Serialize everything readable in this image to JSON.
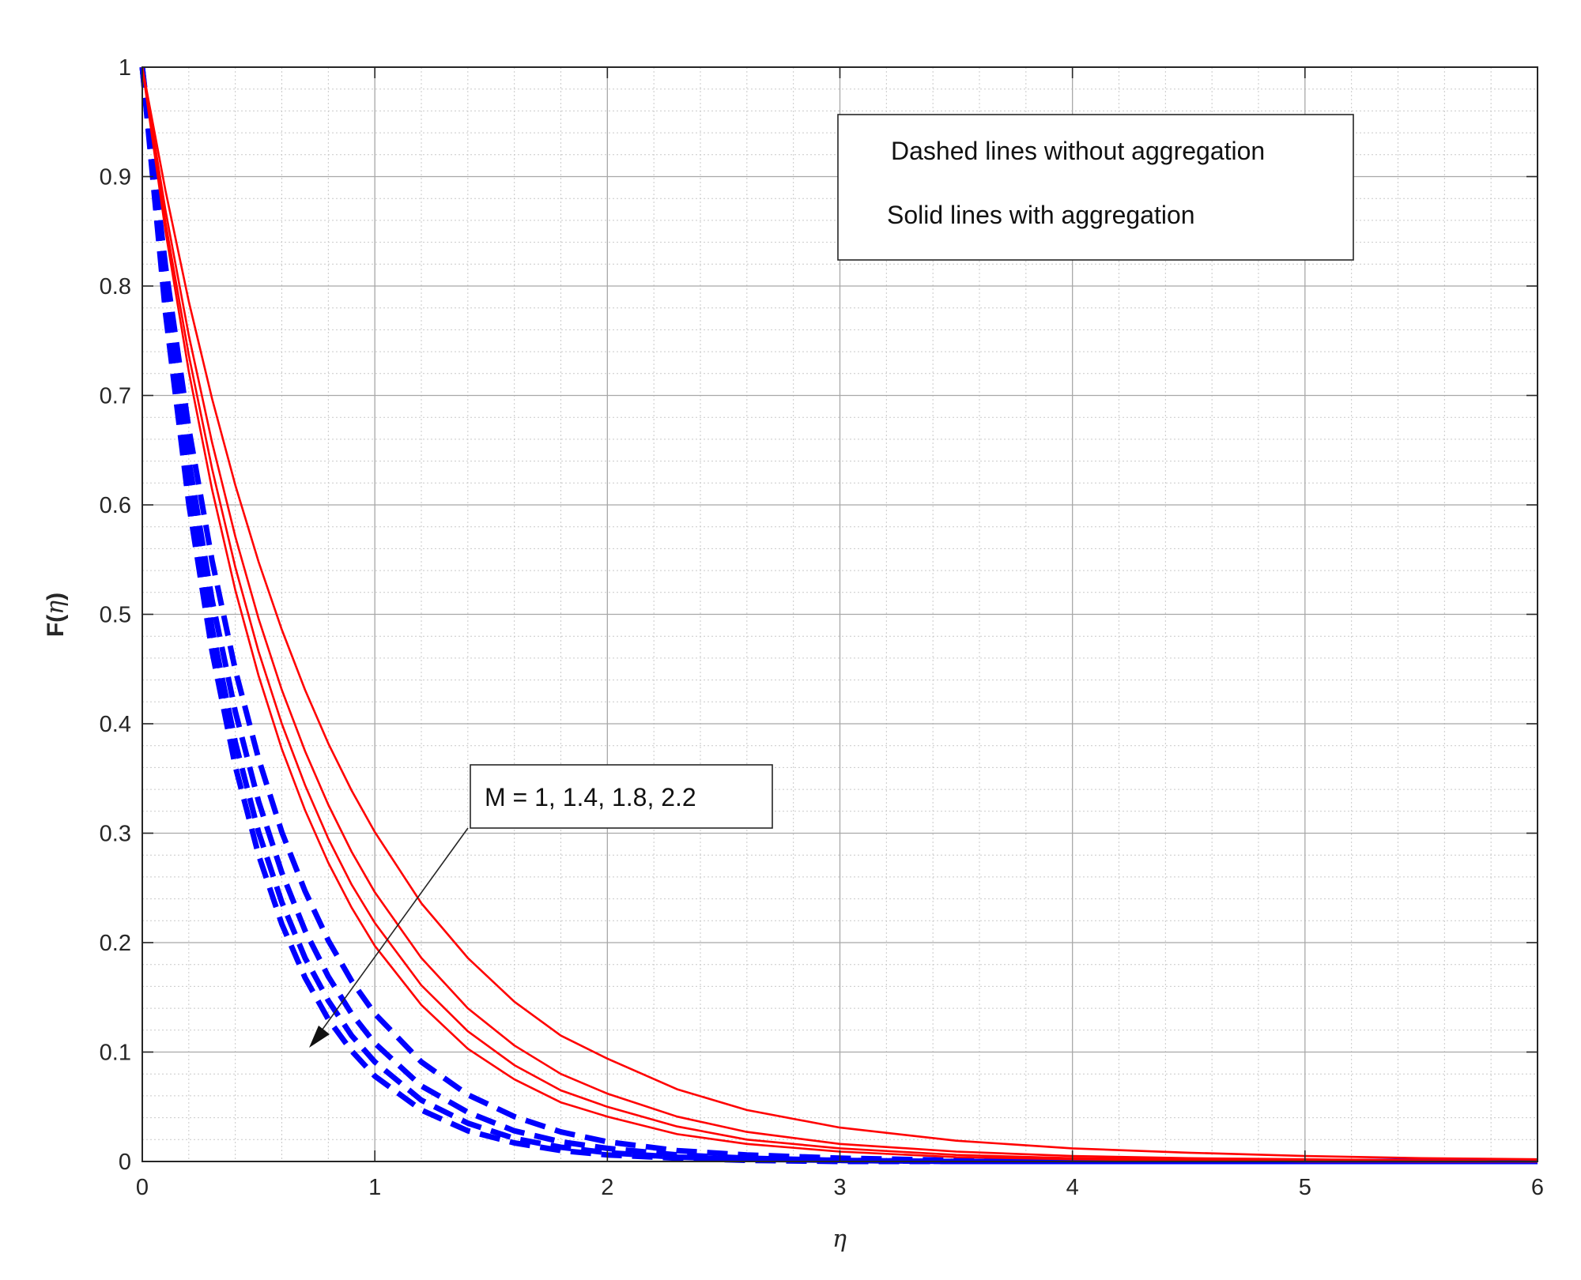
{
  "chart_data": {
    "type": "line",
    "title": "",
    "xlabel": "η",
    "ylabel_prefix": "F(",
    "ylabel_var": "η",
    "ylabel_suffix": ")",
    "xlim": [
      0,
      6
    ],
    "ylim": [
      0,
      1
    ],
    "xticks": [
      0,
      1,
      2,
      3,
      4,
      5,
      6
    ],
    "xtick_labels": [
      "0",
      "1",
      "2",
      "3",
      "4",
      "5",
      "6"
    ],
    "yticks": [
      0,
      0.1,
      0.2,
      0.3,
      0.4,
      0.5,
      0.6,
      0.7,
      0.8,
      0.9,
      1
    ],
    "ytick_labels": [
      "0",
      "0.1",
      "0.2",
      "0.3",
      "0.4",
      "0.5",
      "0.6",
      "0.7",
      "0.8",
      "0.9",
      "1"
    ],
    "grid": true,
    "minor_grid": true,
    "colors": {
      "without_aggregation": "#0000ff",
      "with_aggregation": "#ff0000"
    },
    "x": [
      0,
      0.1,
      0.2,
      0.3,
      0.4,
      0.5,
      0.6,
      0.7,
      0.8,
      0.9,
      1.0,
      1.2,
      1.4,
      1.6,
      1.8,
      2.0,
      2.3,
      2.6,
      3.0,
      3.5,
      4.0,
      4.5,
      5.0,
      5.5,
      6.0
    ],
    "series": [
      {
        "style": "dashed",
        "group": "without_aggregation",
        "M": 1,
        "values": [
          1.0,
          0.818,
          0.67,
          0.549,
          0.449,
          0.368,
          0.301,
          0.247,
          0.202,
          0.165,
          0.135,
          0.091,
          0.061,
          0.041,
          0.027,
          0.018,
          0.01,
          0.006,
          0.003,
          0.001,
          0.0,
          0.0,
          0.0,
          0.0,
          0.0
        ]
      },
      {
        "style": "dashed",
        "group": "without_aggregation",
        "M": 1.4,
        "values": [
          1.0,
          0.801,
          0.641,
          0.513,
          0.411,
          0.329,
          0.264,
          0.211,
          0.169,
          0.135,
          0.108,
          0.069,
          0.045,
          0.028,
          0.018,
          0.012,
          0.006,
          0.003,
          0.001,
          0.0,
          0.0,
          0.0,
          0.0,
          0.0,
          0.0
        ]
      },
      {
        "style": "dashed",
        "group": "without_aggregation",
        "M": 1.8,
        "values": [
          1.0,
          0.787,
          0.619,
          0.487,
          0.383,
          0.301,
          0.237,
          0.186,
          0.147,
          0.115,
          0.091,
          0.056,
          0.035,
          0.021,
          0.013,
          0.008,
          0.004,
          0.002,
          0.001,
          0.0,
          0.0,
          0.0,
          0.0,
          0.0,
          0.0
        ]
      },
      {
        "style": "dashed",
        "group": "without_aggregation",
        "M": 2.2,
        "values": [
          1.0,
          0.775,
          0.601,
          0.466,
          0.361,
          0.28,
          0.217,
          0.168,
          0.13,
          0.101,
          0.078,
          0.047,
          0.028,
          0.017,
          0.01,
          0.006,
          0.003,
          0.001,
          0.0,
          0.0,
          0.0,
          0.0,
          0.0,
          0.0,
          0.0
        ]
      },
      {
        "style": "solid",
        "group": "with_aggregation",
        "M": 1,
        "values": [
          1.0,
          0.887,
          0.786,
          0.697,
          0.618,
          0.548,
          0.486,
          0.431,
          0.382,
          0.339,
          0.301,
          0.236,
          0.186,
          0.146,
          0.115,
          0.094,
          0.066,
          0.047,
          0.031,
          0.019,
          0.012,
          0.008,
          0.005,
          0.003,
          0.002
        ]
      },
      {
        "style": "solid",
        "group": "with_aggregation",
        "M": 1.4,
        "values": [
          1.0,
          0.869,
          0.755,
          0.657,
          0.571,
          0.496,
          0.431,
          0.375,
          0.326,
          0.283,
          0.246,
          0.186,
          0.14,
          0.106,
          0.08,
          0.062,
          0.041,
          0.027,
          0.016,
          0.009,
          0.005,
          0.003,
          0.002,
          0.001,
          0.0
        ]
      },
      {
        "style": "solid",
        "group": "with_aggregation",
        "M": 1.8,
        "values": [
          1.0,
          0.858,
          0.737,
          0.633,
          0.543,
          0.466,
          0.4,
          0.344,
          0.295,
          0.253,
          0.218,
          0.161,
          0.119,
          0.088,
          0.065,
          0.05,
          0.032,
          0.02,
          0.012,
          0.006,
          0.003,
          0.002,
          0.001,
          0.0,
          0.0
        ]
      },
      {
        "style": "solid",
        "group": "with_aggregation",
        "M": 2.2,
        "values": [
          1.0,
          0.85,
          0.722,
          0.614,
          0.522,
          0.444,
          0.377,
          0.321,
          0.273,
          0.232,
          0.197,
          0.143,
          0.103,
          0.075,
          0.054,
          0.041,
          0.025,
          0.016,
          0.009,
          0.004,
          0.002,
          0.001,
          0.0,
          0.0,
          0.0
        ]
      }
    ],
    "legend_box": {
      "lines": [
        "Dashed lines without aggregation",
        "Solid lines with aggregation"
      ],
      "placement": "top-right"
    },
    "annotation": {
      "text": "M = 1, 1.4, 1.8, 2.2",
      "arrow_direction": "down-left"
    }
  }
}
